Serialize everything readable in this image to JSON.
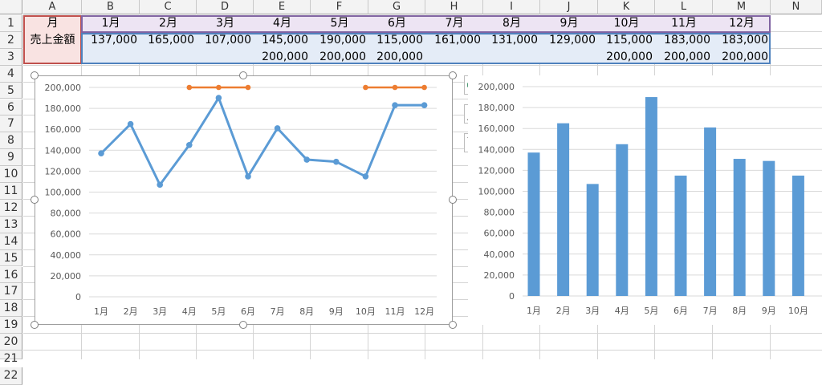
{
  "columns": [
    "A",
    "B",
    "C",
    "D",
    "E",
    "F",
    "G",
    "H",
    "I",
    "J",
    "K",
    "L",
    "M",
    "N"
  ],
  "rows": [
    "1",
    "2",
    "3",
    "4",
    "5",
    "6",
    "7",
    "8",
    "9",
    "10",
    "11",
    "12",
    "13",
    "14",
    "15",
    "16",
    "17",
    "18",
    "19",
    "20",
    "21",
    "22"
  ],
  "table": {
    "header_label": "月",
    "months": [
      "1月",
      "2月",
      "3月",
      "4月",
      "5月",
      "6月",
      "7月",
      "8月",
      "9月",
      "10月",
      "11月",
      "12月"
    ],
    "row2_label": "売上金額",
    "sales": [
      "137,000",
      "165,000",
      "107,000",
      "145,000",
      "190,000",
      "115,000",
      "161,000",
      "131,000",
      "129,000",
      "115,000",
      "183,000",
      "183,000"
    ],
    "targets": [
      "",
      "",
      "",
      "200,000",
      "200,000",
      "200,000",
      "",
      "",
      "",
      "200,000",
      "200,000",
      "200,000"
    ]
  },
  "colors": {
    "sales_series": "#5b9bd5",
    "target_series": "#ed7d31",
    "header_band": "#ede4f3",
    "data_band": "#e4ecf7",
    "selection_a": "#c0504d",
    "chart_button_green": "#4e9a75"
  },
  "chart_buttons": [
    {
      "name": "chart-elements-button",
      "icon": "plus-icon"
    },
    {
      "name": "chart-styles-button",
      "icon": "brush-icon"
    },
    {
      "name": "chart-filters-button",
      "icon": "filter-icon"
    }
  ],
  "chart_data": [
    {
      "type": "line",
      "categories": [
        "1月",
        "2月",
        "3月",
        "4月",
        "5月",
        "6月",
        "7月",
        "8月",
        "9月",
        "10月",
        "11月",
        "12月"
      ],
      "series": [
        {
          "values": [
            137000,
            165000,
            107000,
            145000,
            190000,
            115000,
            161000,
            131000,
            129000,
            115000,
            183000,
            183000
          ],
          "color": "#5b9bd5"
        },
        {
          "values": [
            null,
            null,
            null,
            200000,
            200000,
            200000,
            null,
            null,
            null,
            200000,
            200000,
            200000
          ],
          "color": "#ed7d31"
        }
      ],
      "yticks": [
        "0",
        "20,000",
        "40,000",
        "60,000",
        "80,000",
        "100,000",
        "120,000",
        "140,000",
        "160,000",
        "180,000",
        "200,000"
      ],
      "ylim": [
        0,
        200000
      ],
      "grid": true
    },
    {
      "type": "bar",
      "categories": [
        "1月",
        "2月",
        "3月",
        "4月",
        "5月",
        "6月",
        "7月",
        "8月",
        "9月",
        "10月"
      ],
      "values": [
        137000,
        165000,
        107000,
        145000,
        190000,
        115000,
        161000,
        131000,
        129000,
        115000
      ],
      "color": "#5b9bd5",
      "yticks": [
        "0",
        "20,000",
        "40,000",
        "60,000",
        "80,000",
        "100,000",
        "120,000",
        "140,000",
        "160,000",
        "180,000",
        "200,000"
      ],
      "ylim": [
        0,
        200000
      ],
      "grid": true
    }
  ]
}
